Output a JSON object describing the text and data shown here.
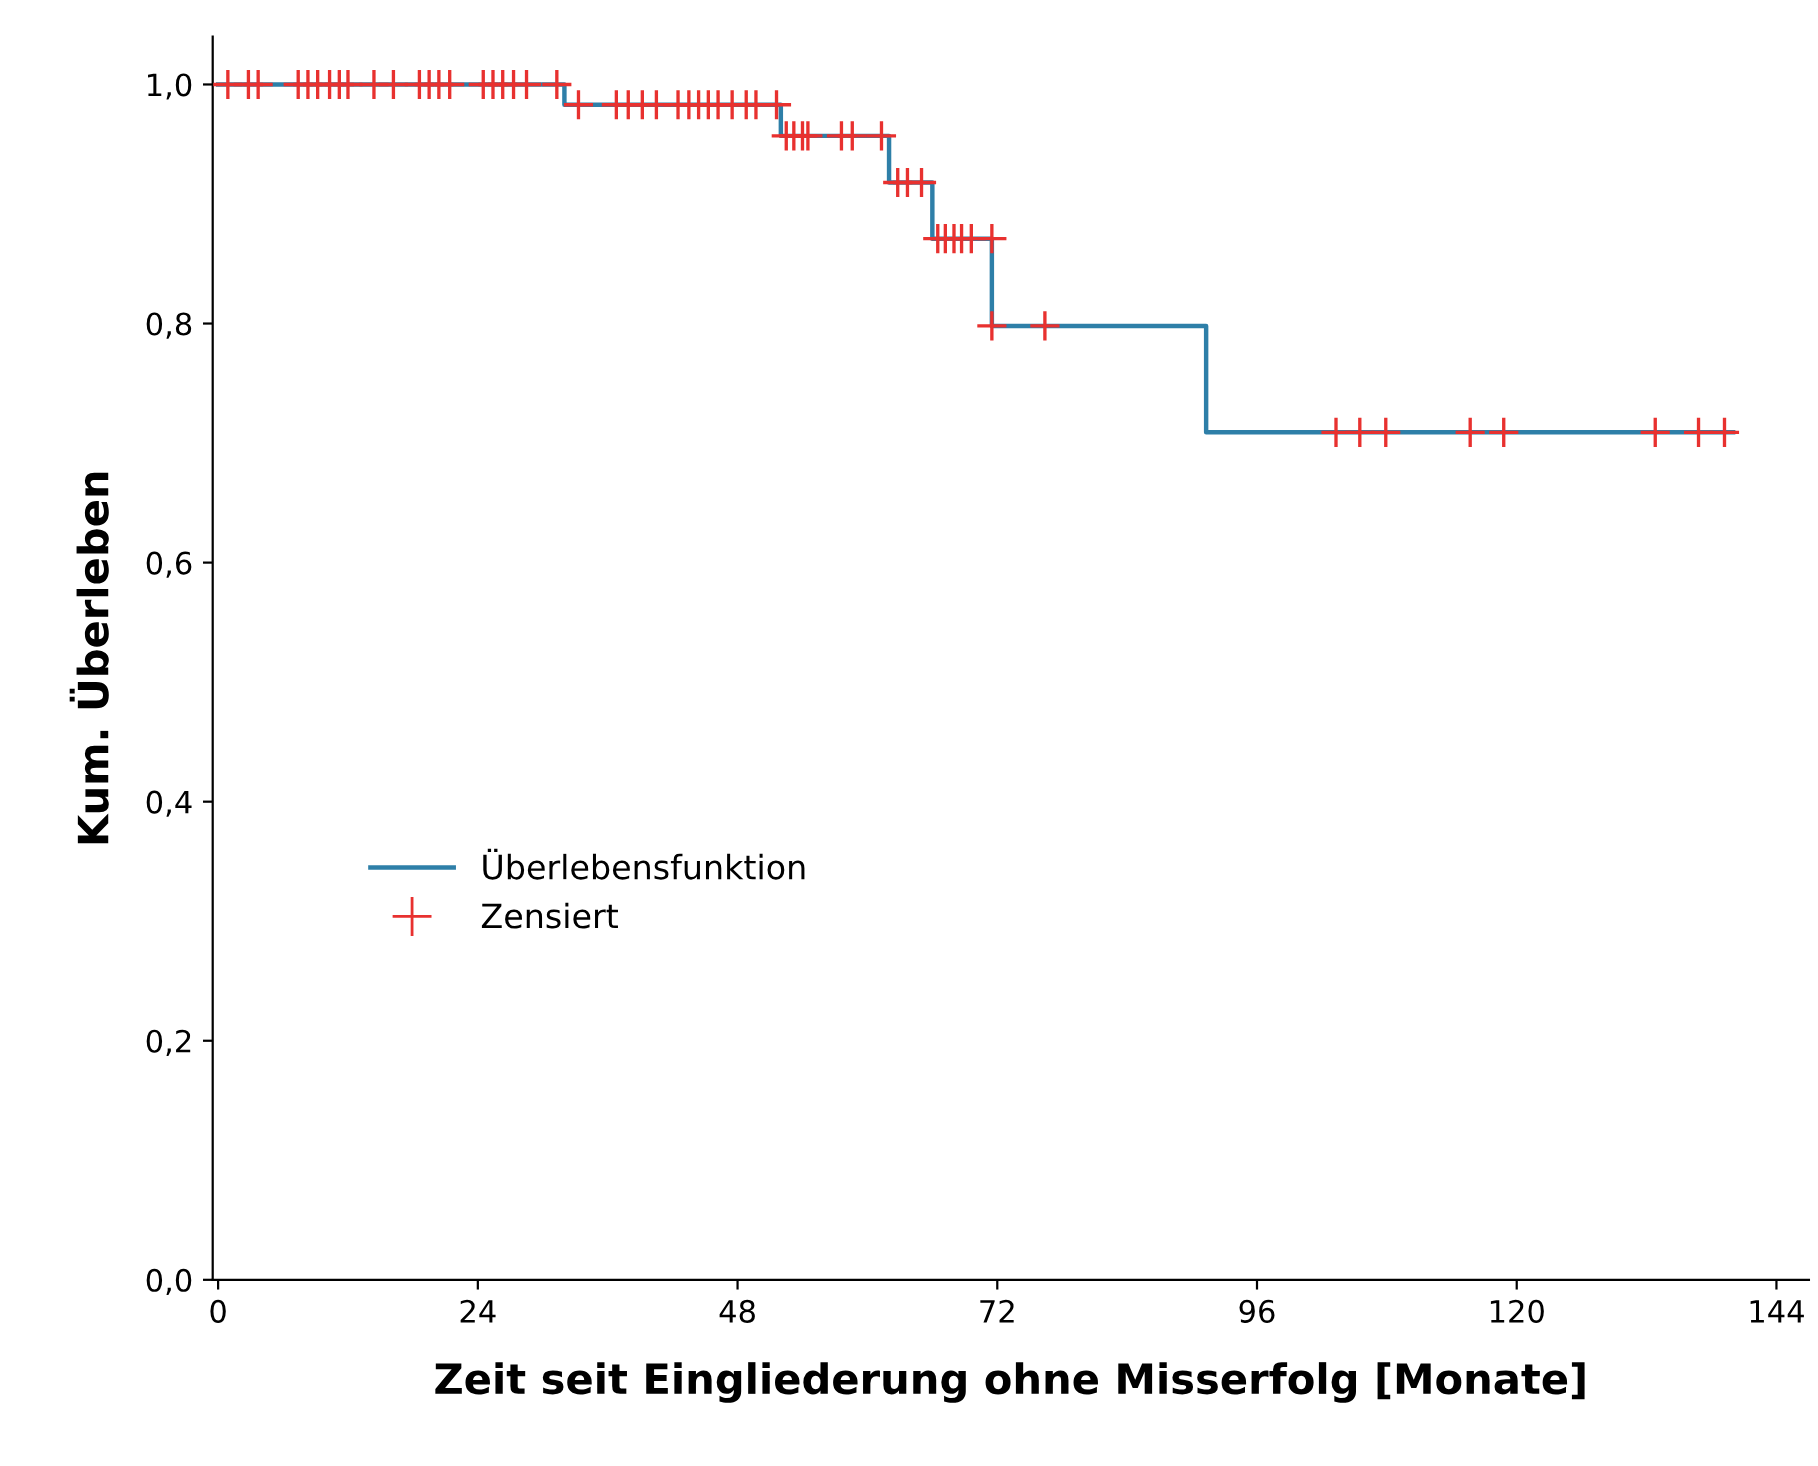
{
  "chart_data": {
    "type": "step",
    "xlabel": "Zeit seit Eingliederung ohne Misserfolg [Monate]",
    "ylabel": "Kum. Überleben",
    "xlim": [
      -0.5,
      147
    ],
    "xticks": [
      0,
      24,
      48,
      72,
      96,
      120,
      144
    ],
    "ylim": [
      0,
      1.04
    ],
    "yticks": [
      {
        "value": 0,
        "label": "0,0"
      },
      {
        "value": 0.2,
        "label": "0,2"
      },
      {
        "value": 0.4,
        "label": "0,4"
      },
      {
        "value": 0.6,
        "label": "0,6"
      },
      {
        "value": 0.8,
        "label": "0,8"
      },
      {
        "value": 1.0,
        "label": "1,0"
      }
    ],
    "grid": false,
    "legend": "left",
    "series": [
      {
        "name": "Überlebensfunktion",
        "color": "#2e7fa8",
        "marker": "none",
        "x": [
          0,
          32,
          52,
          62,
          66,
          71.5,
          91.3,
          140
        ],
        "values": [
          1,
          0.983,
          0.957,
          0.918,
          0.871,
          0.798,
          0.709,
          0.709
        ]
      },
      {
        "name": "Zensiert",
        "type": "scatter",
        "color": "#e8312f",
        "marker": "cross",
        "x": [
          0.9,
          2.8,
          3.7,
          7.4,
          8.3,
          9.2,
          10.3,
          11.2,
          12,
          14.4,
          16.2,
          18.6,
          19.5,
          20.4,
          21.4,
          24.5,
          25.4,
          26.3,
          27.3,
          28.5,
          31.3,
          33.3,
          36.8,
          37.9,
          39.2,
          40.5,
          42.5,
          43.5,
          44.4,
          45.3,
          46.2,
          47.5,
          48.8,
          49.7,
          51.6,
          52.5,
          53.2,
          54,
          54.5,
          57.6,
          58.6,
          61.3,
          62.8,
          63.7,
          65,
          66.5,
          67.2,
          68,
          68.7,
          69.6,
          71.5,
          71.5,
          76.4,
          103.3,
          105.5,
          107.9,
          115.7,
          118.8,
          132.8,
          136.8,
          139.2
        ],
        "values": [
          1,
          1,
          1,
          1,
          1,
          1,
          1,
          1,
          1,
          1,
          1,
          1,
          1,
          1,
          1,
          1,
          1,
          1,
          1,
          1,
          1,
          0.983,
          0.983,
          0.983,
          0.983,
          0.983,
          0.983,
          0.983,
          0.983,
          0.983,
          0.983,
          0.983,
          0.983,
          0.983,
          0.983,
          0.957,
          0.957,
          0.957,
          0.957,
          0.957,
          0.957,
          0.957,
          0.918,
          0.918,
          0.918,
          0.871,
          0.871,
          0.871,
          0.871,
          0.871,
          0.871,
          0.798,
          0.798,
          0.709,
          0.709,
          0.709,
          0.709,
          0.709,
          0.709,
          0.709,
          0.709
        ]
      }
    ]
  }
}
